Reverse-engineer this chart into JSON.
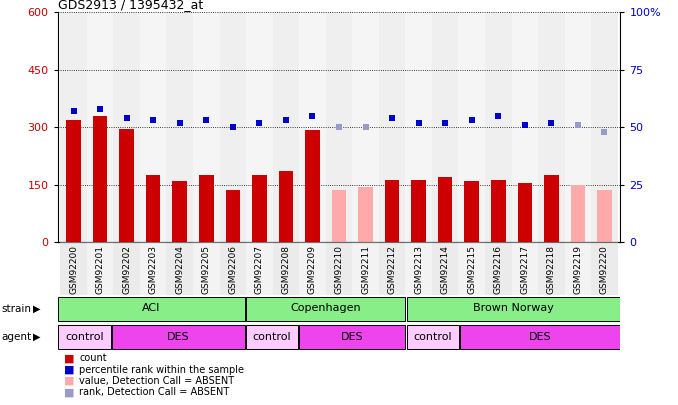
{
  "title": "GDS2913 / 1395432_at",
  "samples": [
    "GSM92200",
    "GSM92201",
    "GSM92202",
    "GSM92203",
    "GSM92204",
    "GSM92205",
    "GSM92206",
    "GSM92207",
    "GSM92208",
    "GSM92209",
    "GSM92210",
    "GSM92211",
    "GSM92212",
    "GSM92213",
    "GSM92214",
    "GSM92215",
    "GSM92216",
    "GSM92217",
    "GSM92218",
    "GSM92219",
    "GSM92220"
  ],
  "count_values": [
    320,
    330,
    296,
    175,
    160,
    175,
    135,
    175,
    185,
    293,
    null,
    null,
    163,
    163,
    170,
    160,
    163,
    155,
    175,
    null,
    null
  ],
  "count_absent": [
    null,
    null,
    null,
    null,
    null,
    null,
    null,
    null,
    null,
    null,
    135,
    145,
    null,
    null,
    null,
    null,
    null,
    null,
    null,
    150,
    135
  ],
  "rank_values": [
    57,
    58,
    54,
    53,
    52,
    53,
    50,
    52,
    53,
    55,
    null,
    null,
    54,
    52,
    52,
    53,
    55,
    51,
    52,
    null,
    null
  ],
  "rank_absent": [
    null,
    null,
    null,
    null,
    null,
    null,
    null,
    null,
    null,
    null,
    50,
    50,
    null,
    null,
    null,
    null,
    null,
    null,
    null,
    51,
    48
  ],
  "ylim_left": [
    0,
    600
  ],
  "ylim_right": [
    0,
    100
  ],
  "yticks_left": [
    0,
    150,
    300,
    450,
    600
  ],
  "yticks_right": [
    0,
    25,
    50,
    75,
    100
  ],
  "strain_groups": [
    {
      "label": "ACI",
      "start": 0,
      "end": 7
    },
    {
      "label": "Copenhagen",
      "start": 7,
      "end": 13
    },
    {
      "label": "Brown Norway",
      "start": 13,
      "end": 21
    }
  ],
  "agent_groups": [
    {
      "label": "control",
      "start": 0,
      "end": 2,
      "color": "#ffccff"
    },
    {
      "label": "DES",
      "start": 2,
      "end": 7,
      "color": "#ee44ee"
    },
    {
      "label": "control",
      "start": 7,
      "end": 9,
      "color": "#ffccff"
    },
    {
      "label": "DES",
      "start": 9,
      "end": 13,
      "color": "#ee44ee"
    },
    {
      "label": "control",
      "start": 13,
      "end": 15,
      "color": "#ffccff"
    },
    {
      "label": "DES",
      "start": 15,
      "end": 21,
      "color": "#ee44ee"
    }
  ],
  "bar_color": "#cc0000",
  "bar_absent_color": "#ffaaaa",
  "rank_color": "#0000cc",
  "rank_absent_color": "#9999cc",
  "strain_color": "#88ee88",
  "grid_color": "#000000",
  "bar_width": 0.55,
  "marker_size": 4
}
